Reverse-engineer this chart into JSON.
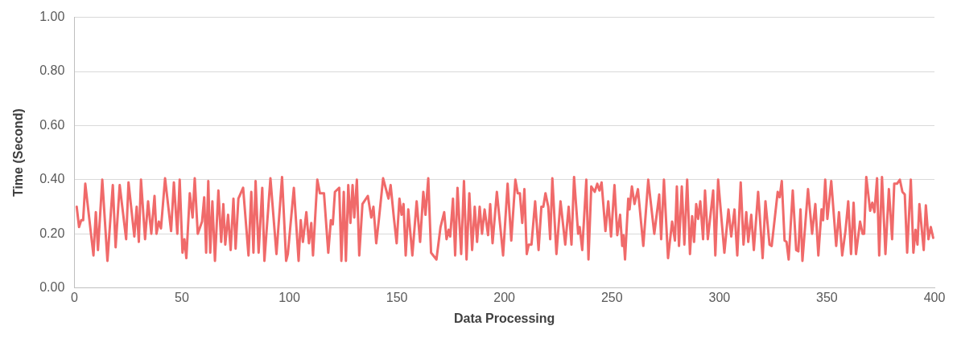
{
  "chart_data": {
    "type": "line",
    "xlabel": "Data Processing",
    "ylabel": "Time (Second)",
    "x": [
      1.1,
      2.2,
      3.2,
      4.1,
      5.1,
      8.9,
      10,
      11,
      13,
      15.4,
      17.9,
      19.2,
      21.1,
      24.1,
      25.2,
      27.9,
      29,
      30,
      31,
      32.9,
      34.3,
      35.8,
      37.3,
      38.2,
      39.3,
      40.3,
      42.2,
      45,
      46.3,
      47.9,
      49,
      50.3,
      51.2,
      52.1,
      53.7,
      55,
      56,
      57.4,
      59.4,
      60.4,
      61.3,
      62.3,
      63.2,
      64.2,
      65.4,
      67,
      68.3,
      69.3,
      70.2,
      71.5,
      72.7,
      74,
      75,
      76.3,
      78.5,
      81,
      82.3,
      83.3,
      84.3,
      85.7,
      87.4,
      88.4,
      91.2,
      94,
      96.6,
      98.5,
      99.3,
      102.1,
      104.3,
      105.3,
      106.3,
      107.9,
      109.1,
      110.2,
      111,
      113,
      114.2,
      116.1,
      118.1,
      119.3,
      120.2,
      121.2,
      123.2,
      124.2,
      125.3,
      126.3,
      127.4,
      128.4,
      129.4,
      130.2,
      131.4,
      132.5,
      134,
      136.5,
      138.1,
      139.1,
      140.4,
      141.6,
      143.6,
      146.1,
      147.1,
      148.6,
      149.9,
      151.2,
      152.2,
      153.1,
      154.1,
      155.3,
      157.2,
      159.2,
      160.8,
      162.3,
      163.3,
      164.6,
      165.9,
      168.4,
      170.3,
      172,
      173.1,
      174.1,
      174.8,
      176.1,
      177.1,
      178.2,
      179.9,
      181.2,
      182.4,
      183.7,
      185,
      186.2,
      187.3,
      188.5,
      189.6,
      190.8,
      192.4,
      193.4,
      194.5,
      196.5,
      199.4,
      201.5,
      203.2,
      205.1,
      206.2,
      207.2,
      208.3,
      209.3,
      210.4,
      211.3,
      212.6,
      214.3,
      215.9,
      217.2,
      218.1,
      219.1,
      220.4,
      221.3,
      222.3,
      224.2,
      226.1,
      228.3,
      229.9,
      231.2,
      232.4,
      234.3,
      235,
      236.2,
      238.1,
      239.1,
      240.4,
      242,
      243.2,
      244.2,
      245.2,
      247,
      248.3,
      249.6,
      251.2,
      252.5,
      253.8,
      254.8,
      255.4,
      256.1,
      257.6,
      258.2,
      259.3,
      260.5,
      262.1,
      264.6,
      266.9,
      269.7,
      272,
      272.9,
      274.2,
      276.1,
      278,
      279.3,
      280.2,
      281.2,
      282.5,
      283.7,
      285,
      286.3,
      287.3,
      288.2,
      289.2,
      290.1,
      291.1,
      292.4,
      293.3,
      294.6,
      297.1,
      298.1,
      299.4,
      302.3,
      304.2,
      305.5,
      307,
      308.3,
      309.9,
      311.2,
      312.5,
      313.4,
      314.8,
      316,
      318,
      320.1,
      321.4,
      323.3,
      324.3,
      327.1,
      328,
      329,
      330.3,
      331.2,
      332.2,
      334.1,
      335.7,
      336.7,
      337.7,
      338.6,
      341.2,
      343.1,
      344.6,
      346,
      347.5,
      348.2,
      349.2,
      350.2,
      352,
      354.3,
      355.6,
      357.1,
      358.6,
      359.9,
      361.2,
      362.4,
      363.5,
      365.4,
      366.6,
      367.3,
      368.3,
      370.1,
      371.1,
      372.1,
      373.3,
      374.3,
      375.6,
      377.2,
      378.8,
      380.3,
      381.3,
      382.6,
      383.9,
      385.1,
      386.2,
      387.3,
      389,
      390.2,
      391.2,
      392.1,
      393,
      395,
      396,
      397.2,
      398.3,
      399.4
    ],
    "series": [
      {
        "color": "#f06a6a",
        "values": [
          0.3,
          0.225,
          0.25,
          0.25,
          0.385,
          0.12,
          0.28,
          0.14,
          0.4,
          0.1,
          0.38,
          0.15,
          0.38,
          0.18,
          0.39,
          0.19,
          0.3,
          0.17,
          0.4,
          0.18,
          0.32,
          0.2,
          0.34,
          0.2,
          0.245,
          0.22,
          0.405,
          0.21,
          0.39,
          0.2,
          0.4,
          0.13,
          0.18,
          0.11,
          0.35,
          0.26,
          0.405,
          0.2,
          0.245,
          0.335,
          0.13,
          0.395,
          0.13,
          0.32,
          0.1,
          0.36,
          0.17,
          0.31,
          0.16,
          0.27,
          0.14,
          0.33,
          0.145,
          0.33,
          0.37,
          0.12,
          0.355,
          0.13,
          0.395,
          0.13,
          0.37,
          0.1,
          0.405,
          0.125,
          0.41,
          0.1,
          0.125,
          0.37,
          0.1,
          0.25,
          0.17,
          0.28,
          0.165,
          0.24,
          0.12,
          0.4,
          0.35,
          0.35,
          0.13,
          0.25,
          0.235,
          0.355,
          0.37,
          0.1,
          0.355,
          0.1,
          0.38,
          0.24,
          0.38,
          0.26,
          0.4,
          0.12,
          0.31,
          0.34,
          0.26,
          0.3,
          0.165,
          0.25,
          0.405,
          0.33,
          0.38,
          0.26,
          0.165,
          0.33,
          0.27,
          0.31,
          0.12,
          0.29,
          0.12,
          0.32,
          0.17,
          0.355,
          0.27,
          0.405,
          0.13,
          0.105,
          0.225,
          0.28,
          0.18,
          0.215,
          0.19,
          0.33,
          0.12,
          0.37,
          0.125,
          0.395,
          0.105,
          0.35,
          0.14,
          0.3,
          0.17,
          0.3,
          0.2,
          0.29,
          0.195,
          0.31,
          0.165,
          0.355,
          0.12,
          0.385,
          0.175,
          0.4,
          0.35,
          0.35,
          0.24,
          0.365,
          0.125,
          0.16,
          0.16,
          0.32,
          0.14,
          0.3,
          0.3,
          0.35,
          0.3,
          0.18,
          0.405,
          0.125,
          0.32,
          0.16,
          0.3,
          0.16,
          0.41,
          0.2,
          0.225,
          0.14,
          0.4,
          0.105,
          0.375,
          0.355,
          0.385,
          0.36,
          0.39,
          0.21,
          0.32,
          0.19,
          0.38,
          0.195,
          0.27,
          0.155,
          0.195,
          0.105,
          0.33,
          0.29,
          0.375,
          0.31,
          0.365,
          0.155,
          0.4,
          0.2,
          0.345,
          0.18,
          0.4,
          0.11,
          0.245,
          0.175,
          0.375,
          0.155,
          0.375,
          0.16,
          0.4,
          0.125,
          0.265,
          0.17,
          0.31,
          0.255,
          0.32,
          0.18,
          0.36,
          0.18,
          0.36,
          0.12,
          0.4,
          0.13,
          0.29,
          0.19,
          0.29,
          0.12,
          0.39,
          0.16,
          0.28,
          0.17,
          0.27,
          0.14,
          0.355,
          0.11,
          0.32,
          0.16,
          0.155,
          0.355,
          0.335,
          0.395,
          0.175,
          0.17,
          0.105,
          0.36,
          0.14,
          0.135,
          0.29,
          0.1,
          0.365,
          0.2,
          0.31,
          0.12,
          0.29,
          0.25,
          0.4,
          0.255,
          0.395,
          0.155,
          0.28,
          0.12,
          0.21,
          0.32,
          0.125,
          0.315,
          0.125,
          0.245,
          0.2,
          0.2,
          0.41,
          0.285,
          0.315,
          0.28,
          0.405,
          0.12,
          0.41,
          0.125,
          0.365,
          0.18,
          0.385,
          0.385,
          0.4,
          0.355,
          0.345,
          0.13,
          0.4,
          0.13,
          0.215,
          0.16,
          0.31,
          0.14,
          0.305,
          0.18,
          0.225,
          0.185
        ]
      }
    ],
    "xlim": [
      0,
      400
    ],
    "xticks": [
      0,
      50,
      100,
      150,
      200,
      250,
      300,
      350,
      400
    ],
    "ylim": [
      0,
      1
    ],
    "yticks": [
      {
        "value": 0,
        "label": "0.00"
      },
      {
        "value": 0.2,
        "label": "0.20"
      },
      {
        "value": 0.4,
        "label": "0.40"
      },
      {
        "value": 0.6,
        "label": "0.60"
      },
      {
        "value": 0.8,
        "label": "0.80"
      },
      {
        "value": 1,
        "label": "1.00"
      }
    ],
    "grid": "y",
    "legend": false,
    "marker": "none",
    "line_style": "solid"
  }
}
